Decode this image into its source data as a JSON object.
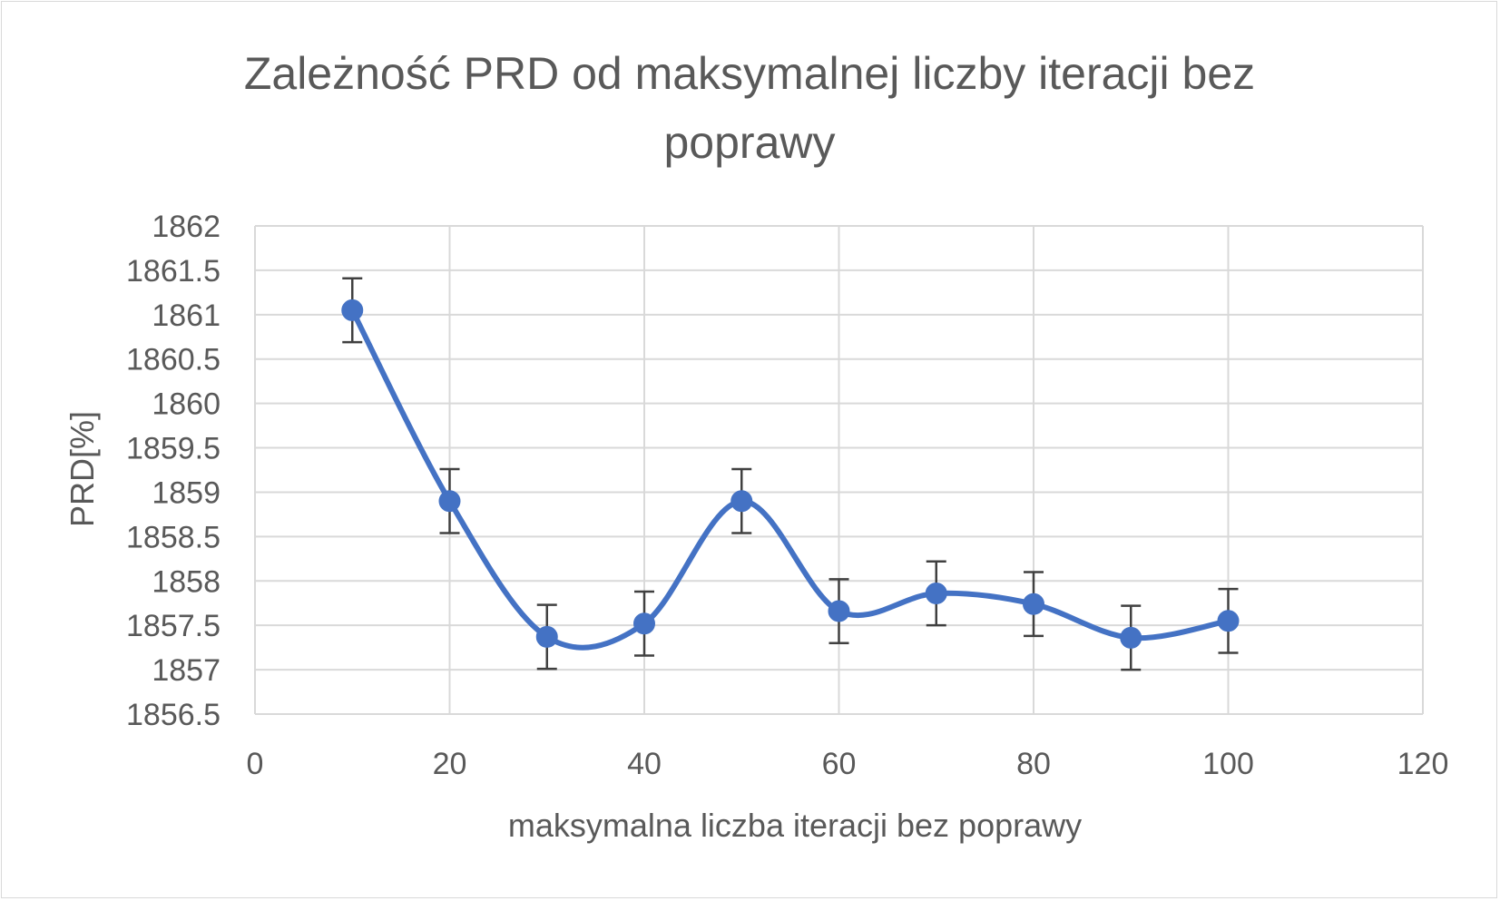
{
  "chart_data": {
    "type": "scatter",
    "title": "Zależność PRD od maksymalnej liczby iteracji bez poprawy",
    "title_lines": [
      "Zależność PRD od maksymalnej liczby iteracji bez",
      "poprawy"
    ],
    "xlabel": "maksymalna liczba iteracji bez poprawy",
    "ylabel": "PRD[%]",
    "xlim": [
      0,
      120
    ],
    "ylim": [
      1856.5,
      1862
    ],
    "x_ticks": [
      0,
      20,
      40,
      60,
      80,
      100,
      120
    ],
    "y_ticks": [
      1856.5,
      1857,
      1857.5,
      1858,
      1858.5,
      1859,
      1859.5,
      1860,
      1860.5,
      1861,
      1861.5,
      1862
    ],
    "x_tick_labels": [
      "0",
      "20",
      "40",
      "60",
      "80",
      "100",
      "120"
    ],
    "y_tick_labels": [
      "1856.5",
      "1857",
      "1857.5",
      "1858",
      "1858.5",
      "1859",
      "1859.5",
      "1860",
      "1860.5",
      "1861",
      "1861.5",
      "1862"
    ],
    "grid": true,
    "smooth_line": true,
    "markers": true,
    "legend": "none",
    "series": [
      {
        "x": [
          10,
          20,
          30,
          40,
          50,
          60,
          70,
          80,
          90,
          100
        ],
        "y": [
          1861.05,
          1858.9,
          1857.37,
          1857.52,
          1858.9,
          1857.66,
          1857.86,
          1857.74,
          1857.36,
          1857.55
        ],
        "error": [
          0.36,
          0.36,
          0.36,
          0.36,
          0.36,
          0.36,
          0.36,
          0.36,
          0.36,
          0.36
        ],
        "color": "#4472c4"
      }
    ],
    "colors": {
      "series": "#4472c4",
      "grid": "#d9d9d9",
      "text": "#595959",
      "error_bar": "#404040"
    }
  }
}
